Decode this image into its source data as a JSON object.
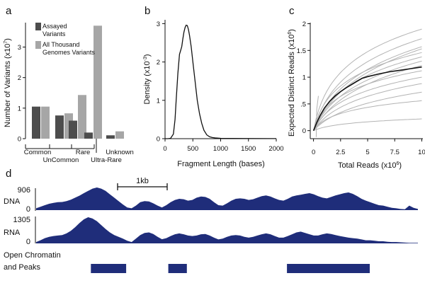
{
  "panel_letters": {
    "a": "a",
    "b": "b",
    "c": "c",
    "d": "d"
  },
  "chart_data": [
    {
      "panel": "a",
      "type": "bar",
      "ylabel": "Number of Variants (x10",
      "ylabel_exp": "7",
      "ylabel_close": ")",
      "ylim": [
        0,
        3.8
      ],
      "yticks": [
        "0",
        "1",
        "2",
        "3"
      ],
      "categories": [
        "Common",
        "UnCommon",
        "Rare",
        "Ultra-Rare",
        "Unknown"
      ],
      "series": [
        {
          "name": "Assayed Variants",
          "color": "#4d4d4d",
          "values": [
            1.05,
            0.76,
            0.59,
            0.2,
            0.11
          ]
        },
        {
          "name": "All Thousand Genomes Variants",
          "color": "#a6a6a6",
          "values": [
            1.05,
            0.83,
            1.43,
            3.7,
            0.24
          ]
        }
      ],
      "legend_lines": [
        [
          "Assayed",
          "Variants"
        ],
        [
          "All Thousand",
          "Genomes Variants"
        ]
      ]
    },
    {
      "panel": "b",
      "type": "line",
      "xlabel": "Fragment Length (bases)",
      "ylabel": "Density (x10",
      "ylabel_exp": "-3",
      "ylabel_close": ")",
      "xlim": [
        0,
        2000
      ],
      "ylim": [
        0,
        3.1
      ],
      "xticks": [
        "0",
        "500",
        "1000",
        "1500",
        "2000"
      ],
      "yticks": [
        "0",
        "1",
        "2",
        "3"
      ],
      "x": [
        0,
        50,
        100,
        150,
        180,
        200,
        230,
        260,
        280,
        300,
        320,
        340,
        360,
        380,
        400,
        420,
        440,
        470,
        500,
        540,
        580,
        620,
        660,
        700,
        750,
        800,
        850,
        900,
        1000,
        1200,
        1500,
        2000
      ],
      "y": [
        0,
        0,
        0.01,
        0.12,
        0.5,
        1.0,
        1.7,
        2.2,
        2.3,
        2.4,
        2.6,
        2.78,
        2.9,
        2.96,
        2.95,
        2.85,
        2.7,
        2.4,
        2.0,
        1.5,
        1.0,
        0.65,
        0.4,
        0.22,
        0.1,
        0.05,
        0.03,
        0.02,
        0.01,
        0.005,
        0.003,
        0.002
      ]
    },
    {
      "panel": "c",
      "type": "line",
      "xlabel": "Total Reads (x10",
      "xlabel_exp": "6",
      "xlabel_close": ")",
      "ylabel": "Expected Distinct Reads (x10",
      "ylabel_exp": "6",
      "ylabel_close": ")",
      "xlim": [
        -0.3,
        10.1
      ],
      "ylim": [
        -0.15,
        2.02
      ],
      "xticks": [
        "0",
        "2.5",
        "5",
        "7.5",
        "10"
      ],
      "yticks": [
        "0",
        ".5",
        "1",
        "1.5",
        "2"
      ],
      "grey_curve_endpoints": [
        1.9,
        1.72,
        1.57,
        1.53,
        1.46,
        1.38,
        1.3,
        1.22,
        1.12,
        1.0,
        0.88,
        0.72,
        0.56,
        0.22
      ],
      "mean_x": [
        0,
        0.3,
        0.6,
        1,
        1.5,
        2,
        2.5,
        3,
        3.5,
        4,
        4.5,
        5,
        6,
        7,
        8,
        9,
        10
      ],
      "mean_y": [
        0,
        0.15,
        0.28,
        0.42,
        0.55,
        0.65,
        0.73,
        0.8,
        0.86,
        0.92,
        0.98,
        1.01,
        1.06,
        1.1,
        1.13,
        1.16,
        1.19
      ]
    },
    {
      "panel": "d",
      "type": "area",
      "scale_label": "1kb",
      "tracks": [
        {
          "name": "DNA",
          "max_label": "906",
          "zero_label": "0",
          "values": [
            0.08,
            0.15,
            0.22,
            0.28,
            0.32,
            0.35,
            0.36,
            0.4,
            0.46,
            0.55,
            0.64,
            0.75,
            0.85,
            0.95,
            1.0,
            0.95,
            0.85,
            0.7,
            0.55,
            0.4,
            0.25,
            0.12,
            0.08,
            0.2,
            0.35,
            0.4,
            0.38,
            0.3,
            0.2,
            0.12,
            0.22,
            0.35,
            0.45,
            0.5,
            0.48,
            0.42,
            0.45,
            0.55,
            0.6,
            0.58,
            0.5,
            0.35,
            0.22,
            0.2,
            0.3,
            0.42,
            0.5,
            0.52,
            0.5,
            0.45,
            0.48,
            0.55,
            0.62,
            0.65,
            0.6,
            0.52,
            0.45,
            0.42,
            0.5,
            0.6,
            0.65,
            0.68,
            0.72,
            0.75,
            0.7,
            0.62,
            0.55,
            0.52,
            0.58,
            0.65,
            0.7,
            0.75,
            0.78,
            0.72,
            0.62,
            0.5,
            0.42,
            0.35,
            0.28,
            0.22,
            0.2,
            0.15,
            0.1,
            0.08,
            0.05,
            0.04,
            0.2,
            0.1,
            0.05
          ]
        },
        {
          "name": "RNA",
          "max_label": "1305",
          "zero_label": "0",
          "values": [
            0.05,
            0.12,
            0.2,
            0.25,
            0.28,
            0.3,
            0.32,
            0.38,
            0.48,
            0.62,
            0.78,
            0.92,
            1.0,
            0.95,
            0.85,
            0.7,
            0.55,
            0.42,
            0.32,
            0.25,
            0.18,
            0.1,
            0.05,
            0.18,
            0.32,
            0.4,
            0.42,
            0.36,
            0.25,
            0.16,
            0.2,
            0.28,
            0.35,
            0.38,
            0.35,
            0.3,
            0.28,
            0.3,
            0.35,
            0.36,
            0.3,
            0.22,
            0.15,
            0.18,
            0.25,
            0.3,
            0.32,
            0.3,
            0.25,
            0.22,
            0.25,
            0.3,
            0.35,
            0.38,
            0.35,
            0.28,
            0.22,
            0.22,
            0.28,
            0.35,
            0.42,
            0.45,
            0.4,
            0.35,
            0.3,
            0.3,
            0.35,
            0.38,
            0.36,
            0.32,
            0.28,
            0.25,
            0.22,
            0.2,
            0.18,
            0.15,
            0.12,
            0.12,
            0.1,
            0.08,
            0.08,
            0.06,
            0.05,
            0.05,
            0.04,
            0.03,
            0.02,
            0.02,
            0.02
          ]
        }
      ],
      "peaks_label_lines": [
        "Open Chromatin",
        "and Peaks"
      ],
      "peaks": [
        [
          0.067,
          0.185
        ],
        [
          0.326,
          0.388
        ],
        [
          0.723,
          1.0
        ]
      ]
    }
  ]
}
